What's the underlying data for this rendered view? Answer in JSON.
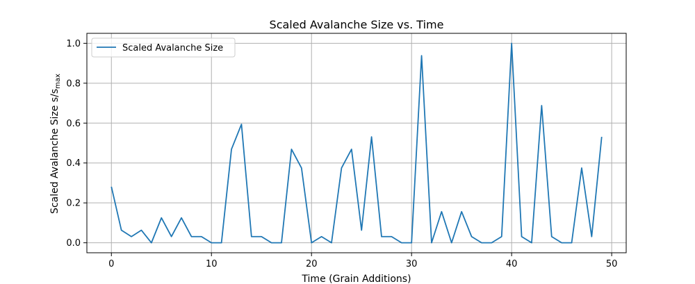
{
  "chart_data": {
    "type": "line",
    "title": "Scaled Avalanche Size vs. Time",
    "xlabel": "Time (Grain Additions)",
    "ylabel_main": "Scaled Avalanche Size s/s",
    "ylabel_sub": "max",
    "xlim": [
      -2.45,
      51.45
    ],
    "ylim": [
      -0.05,
      1.05
    ],
    "xticks": [
      0,
      10,
      20,
      30,
      40,
      50
    ],
    "yticks": [
      0.0,
      0.2,
      0.4,
      0.6,
      0.8,
      1.0
    ],
    "xtick_labels": [
      "0",
      "10",
      "20",
      "30",
      "40",
      "50"
    ],
    "ytick_labels": [
      "0.0",
      "0.2",
      "0.4",
      "0.6",
      "0.8",
      "1.0"
    ],
    "grid": true,
    "legend_position": "upper-left",
    "color": "#1f77b4",
    "series": [
      {
        "name": "Scaled Avalanche Size",
        "x": [
          0,
          1,
          2,
          3,
          4,
          5,
          6,
          7,
          8,
          9,
          10,
          11,
          12,
          13,
          14,
          15,
          16,
          17,
          18,
          19,
          20,
          21,
          22,
          23,
          24,
          25,
          26,
          27,
          28,
          29,
          30,
          31,
          32,
          33,
          34,
          35,
          36,
          37,
          38,
          39,
          40,
          41,
          42,
          43,
          44,
          45,
          46,
          47,
          48,
          49
        ],
        "values": [
          0.281,
          0.063,
          0.031,
          0.063,
          0.0,
          0.125,
          0.031,
          0.125,
          0.031,
          0.031,
          0.0,
          0.0,
          0.469,
          0.594,
          0.031,
          0.031,
          0.0,
          0.0,
          0.469,
          0.375,
          0.0,
          0.031,
          0.0,
          0.375,
          0.469,
          0.063,
          0.531,
          0.031,
          0.031,
          0.0,
          0.0,
          0.938,
          0.0,
          0.156,
          0.0,
          0.156,
          0.031,
          0.0,
          0.0,
          0.031,
          1.0,
          0.031,
          0.0,
          0.688,
          0.031,
          0.0,
          0.0,
          0.375,
          0.031,
          0.531
        ]
      }
    ]
  }
}
